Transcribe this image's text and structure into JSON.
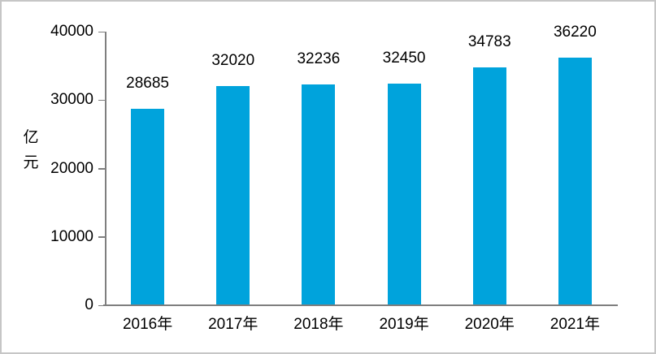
{
  "chart_data": {
    "type": "bar",
    "title": "",
    "categories": [
      "2016年",
      "2017年",
      "2018年",
      "2019年",
      "2020年",
      "2021年"
    ],
    "values": [
      28685,
      32020,
      32236,
      32450,
      34783,
      36220
    ],
    "data_labels": [
      "28685",
      "32020",
      "32236",
      "32450",
      "34783",
      "36220"
    ],
    "xlabel": "",
    "ylabel": "亿元",
    "ylim": [
      0,
      40000
    ],
    "yticks": [
      0,
      10000,
      20000,
      30000,
      40000
    ],
    "ytick_labels": [
      "0",
      "10000",
      "20000",
      "30000",
      "40000"
    ],
    "grid": false,
    "legend": "none",
    "data_labels_visible": true,
    "bar_color": "#00A3DC",
    "axis_color": "#7F7F7F",
    "text_color": "#000000",
    "background_color": "#FFFFFF",
    "frame_border_color": "#C6C6C6"
  }
}
